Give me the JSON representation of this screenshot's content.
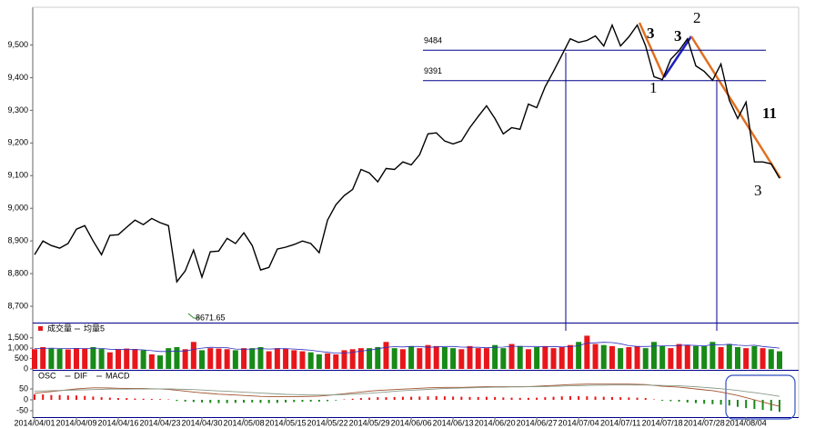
{
  "chart_data": [
    {
      "type": "line",
      "series": [
        {
          "color": "#000000",
          "values": [
            8858,
            8900,
            8886,
            8878,
            8892,
            8936,
            8947,
            8900,
            8858,
            8917,
            8919,
            8942,
            8964,
            8950,
            8969,
            8956,
            8947,
            8775,
            8808,
            8872,
            8789,
            8867,
            8869,
            8908,
            8892,
            8925,
            8886,
            8811,
            8819,
            8875,
            8881,
            8889,
            8900,
            8892,
            8864,
            8964,
            9011,
            9039,
            9058,
            9119,
            9108,
            9081,
            9122,
            9119,
            9142,
            9133,
            9164,
            9228,
            9231,
            9206,
            9197,
            9206,
            9247,
            9281,
            9314,
            9275,
            9228,
            9247,
            9242,
            9319,
            9308,
            9372,
            9419,
            9469,
            9519,
            9508,
            9514,
            9528,
            9497,
            9561,
            9497,
            9525,
            9561,
            9497,
            9403,
            9394,
            9456,
            9483,
            9519,
            9436,
            9419,
            9392,
            9442,
            9331,
            9275,
            9325,
            9142,
            9142,
            9136,
            9092
          ]
        }
      ],
      "ylim": [
        8650,
        9610
      ],
      "yticks": [
        {
          "value": 8700,
          "label": "8,700"
        },
        {
          "value": 8800,
          "label": "8,800"
        },
        {
          "value": 8900,
          "label": "8,900"
        },
        {
          "value": 9000,
          "label": "9,000"
        },
        {
          "value": 9100,
          "label": "9,100"
        },
        {
          "value": 9200,
          "label": "9,200"
        },
        {
          "value": 9300,
          "label": "9,300"
        },
        {
          "value": 9400,
          "label": "9,400"
        },
        {
          "value": 9500,
          "label": "9,500"
        }
      ],
      "levels": [
        9484,
        9391
      ],
      "level_color": "#00008b",
      "low_label": 8671.65,
      "low_label_color": "#2e8b2e",
      "annotations": [
        {
          "text": "3",
          "color": "#e07020"
        },
        {
          "text": "3",
          "color": "#2020c0"
        },
        {
          "text": "2",
          "color": "#000000"
        },
        {
          "text": "1",
          "color": "#000000"
        },
        {
          "text": "11",
          "color": "#e07020"
        },
        {
          "text": "3",
          "color": "#000000"
        }
      ]
    },
    {
      "type": "bar",
      "series": [
        {
          "name": "成交量",
          "values": [
            950,
            1050,
            980,
            960,
            940,
            1000,
            980,
            1050,
            960,
            800,
            950,
            980,
            960,
            900,
            700,
            650,
            1000,
            1050,
            950,
            1300,
            900,
            1000,
            980,
            950,
            900,
            1000,
            1000,
            1050,
            850,
            1000,
            980,
            900,
            850,
            800,
            700,
            750,
            700,
            900,
            950,
            1000,
            1000,
            1050,
            1300,
            1000,
            950,
            1100,
            1000,
            1150,
            1100,
            1050,
            1000,
            950,
            1100,
            1000,
            1000,
            1150,
            1000,
            1200,
            1100,
            950,
            1050,
            1100,
            1000,
            1050,
            1150,
            1300,
            1600,
            1200,
            1150,
            1100,
            1000,
            1050,
            1100,
            1000,
            1300,
            1100,
            1000,
            1200,
            1150,
            1100,
            1100,
            1300,
            1050,
            1200,
            1050,
            1000,
            1100,
            1000,
            950,
            850
          ]
        },
        {
          "name": "均量5",
          "color": "#3030c0",
          "values": [
            980,
            990,
            1000,
            990,
            980,
            990,
            980,
            1000,
            990,
            950,
            940,
            930,
            930,
            920,
            880,
            840,
            840,
            860,
            860,
            940,
            1000,
            1040,
            1030,
            1020,
            960,
            950,
            960,
            980,
            960,
            970,
            980,
            960,
            930,
            900,
            850,
            800,
            760,
            760,
            800,
            860,
            900,
            970,
            1040,
            1070,
            1060,
            1080,
            1080,
            1040,
            1060,
            1080,
            1080,
            1050,
            1040,
            1040,
            1020,
            1040,
            1050,
            1090,
            1090,
            1080,
            1080,
            1060,
            1080,
            1060,
            1070,
            1120,
            1240,
            1260,
            1280,
            1270,
            1210,
            1120,
            1080,
            1080,
            1100,
            1110,
            1110,
            1130,
            1150,
            1130,
            1110,
            1170,
            1160,
            1190,
            1140,
            1120,
            1140,
            1080,
            1040,
            1000
          ]
        }
      ],
      "up_color": "#e8161b",
      "down_color": "#178a17",
      "ylim": [
        0,
        2100
      ],
      "yticks": [
        0,
        500,
        {
          "value": 1000,
          "label": "1,000"
        },
        {
          "value": 1500,
          "label": "1,500"
        }
      ]
    },
    {
      "type": "bar",
      "categories": [
        "2014/04/01",
        null,
        null,
        null,
        null,
        "2014/04/09",
        null,
        null,
        null,
        null,
        "2014/04/16",
        null,
        null,
        null,
        null,
        "2014/04/23",
        null,
        null,
        null,
        null,
        "2014/04/30",
        null,
        null,
        null,
        null,
        "2014/05/08",
        null,
        null,
        null,
        null,
        "2014/05/15",
        null,
        null,
        null,
        null,
        "2014/05/22",
        null,
        null,
        null,
        null,
        "2014/05/29",
        null,
        null,
        null,
        null,
        "2014/06/06",
        null,
        null,
        null,
        null,
        "2014/06/13",
        null,
        null,
        null,
        null,
        "2014/06/20",
        null,
        null,
        null,
        null,
        "2014/06/27",
        null,
        null,
        null,
        null,
        "2014/07/04",
        null,
        null,
        null,
        null,
        "2014/07/11",
        null,
        null,
        null,
        null,
        "2014/07/18",
        null,
        null,
        null,
        null,
        "2014/07/28",
        null,
        null,
        null,
        null,
        "2014/08/04",
        null,
        null,
        null,
        null
      ],
      "series": [
        {
          "name": "OSC",
          "values": [
            25,
            25,
            22,
            22,
            20,
            20,
            18,
            15,
            12,
            10,
            8,
            8,
            6,
            5,
            4,
            3,
            2,
            -5,
            -8,
            -10,
            -12,
            -14,
            -15,
            -15,
            -14,
            -13,
            -12,
            -14,
            -15,
            -14,
            -12,
            -10,
            -9,
            -8,
            -8,
            -6,
            -3,
            2,
            5,
            8,
            10,
            12,
            12,
            13,
            14,
            14,
            15,
            16,
            17,
            16,
            15,
            14,
            13,
            13,
            14,
            13,
            11,
            10,
            9,
            9,
            10,
            12,
            14,
            16,
            17,
            17,
            16,
            15,
            14,
            13,
            12,
            11,
            10,
            8,
            2,
            -4,
            -6,
            -8,
            -12,
            -15,
            -18,
            -20,
            -22,
            -26,
            -32,
            -38,
            -42,
            -46,
            -50,
            -55
          ]
        },
        {
          "name": "DIF",
          "color": "#a0522d",
          "values": [
            30,
            34,
            38,
            42,
            46,
            50,
            53,
            55,
            55,
            54,
            53,
            52,
            52,
            52,
            51,
            50,
            48,
            44,
            40,
            36,
            32,
            29,
            26,
            24,
            22,
            20,
            18,
            16,
            15,
            14,
            14,
            14,
            15,
            16,
            17,
            20,
            24,
            28,
            32,
            36,
            40,
            43,
            45,
            47,
            49,
            51,
            53,
            55,
            56,
            57,
            57,
            57,
            58,
            59,
            60,
            60,
            60,
            60,
            60,
            61,
            62,
            64,
            66,
            68,
            70,
            71,
            72,
            72,
            72,
            72,
            72,
            72,
            71,
            70,
            66,
            62,
            60,
            58,
            54,
            50,
            46,
            42,
            36,
            28,
            20,
            10,
            0,
            -10,
            -20,
            -30
          ]
        },
        {
          "name": "MACD",
          "color": "#8a9a8a",
          "values": [
            40,
            41,
            42,
            43,
            44,
            45,
            46,
            47,
            48,
            49,
            49,
            49,
            50,
            50,
            50,
            50,
            50,
            49,
            48,
            47,
            45,
            43,
            41,
            39,
            37,
            35,
            33,
            31,
            29,
            27,
            25,
            24,
            23,
            22,
            22,
            22,
            23,
            24,
            26,
            28,
            30,
            33,
            36,
            39,
            42,
            44,
            46,
            48,
            50,
            52,
            53,
            54,
            55,
            56,
            57,
            58,
            58,
            59,
            59,
            60,
            60,
            61,
            62,
            63,
            64,
            65,
            66,
            67,
            67,
            68,
            68,
            68,
            68,
            68,
            67,
            66,
            65,
            64,
            62,
            60,
            57,
            54,
            51,
            47,
            43,
            38,
            33,
            28,
            22,
            16
          ]
        }
      ],
      "up_color": "#e8161b",
      "down_color": "#178a17",
      "ylim": [
        -75,
        125
      ],
      "yticks": [
        -50,
        0,
        50
      ]
    }
  ]
}
